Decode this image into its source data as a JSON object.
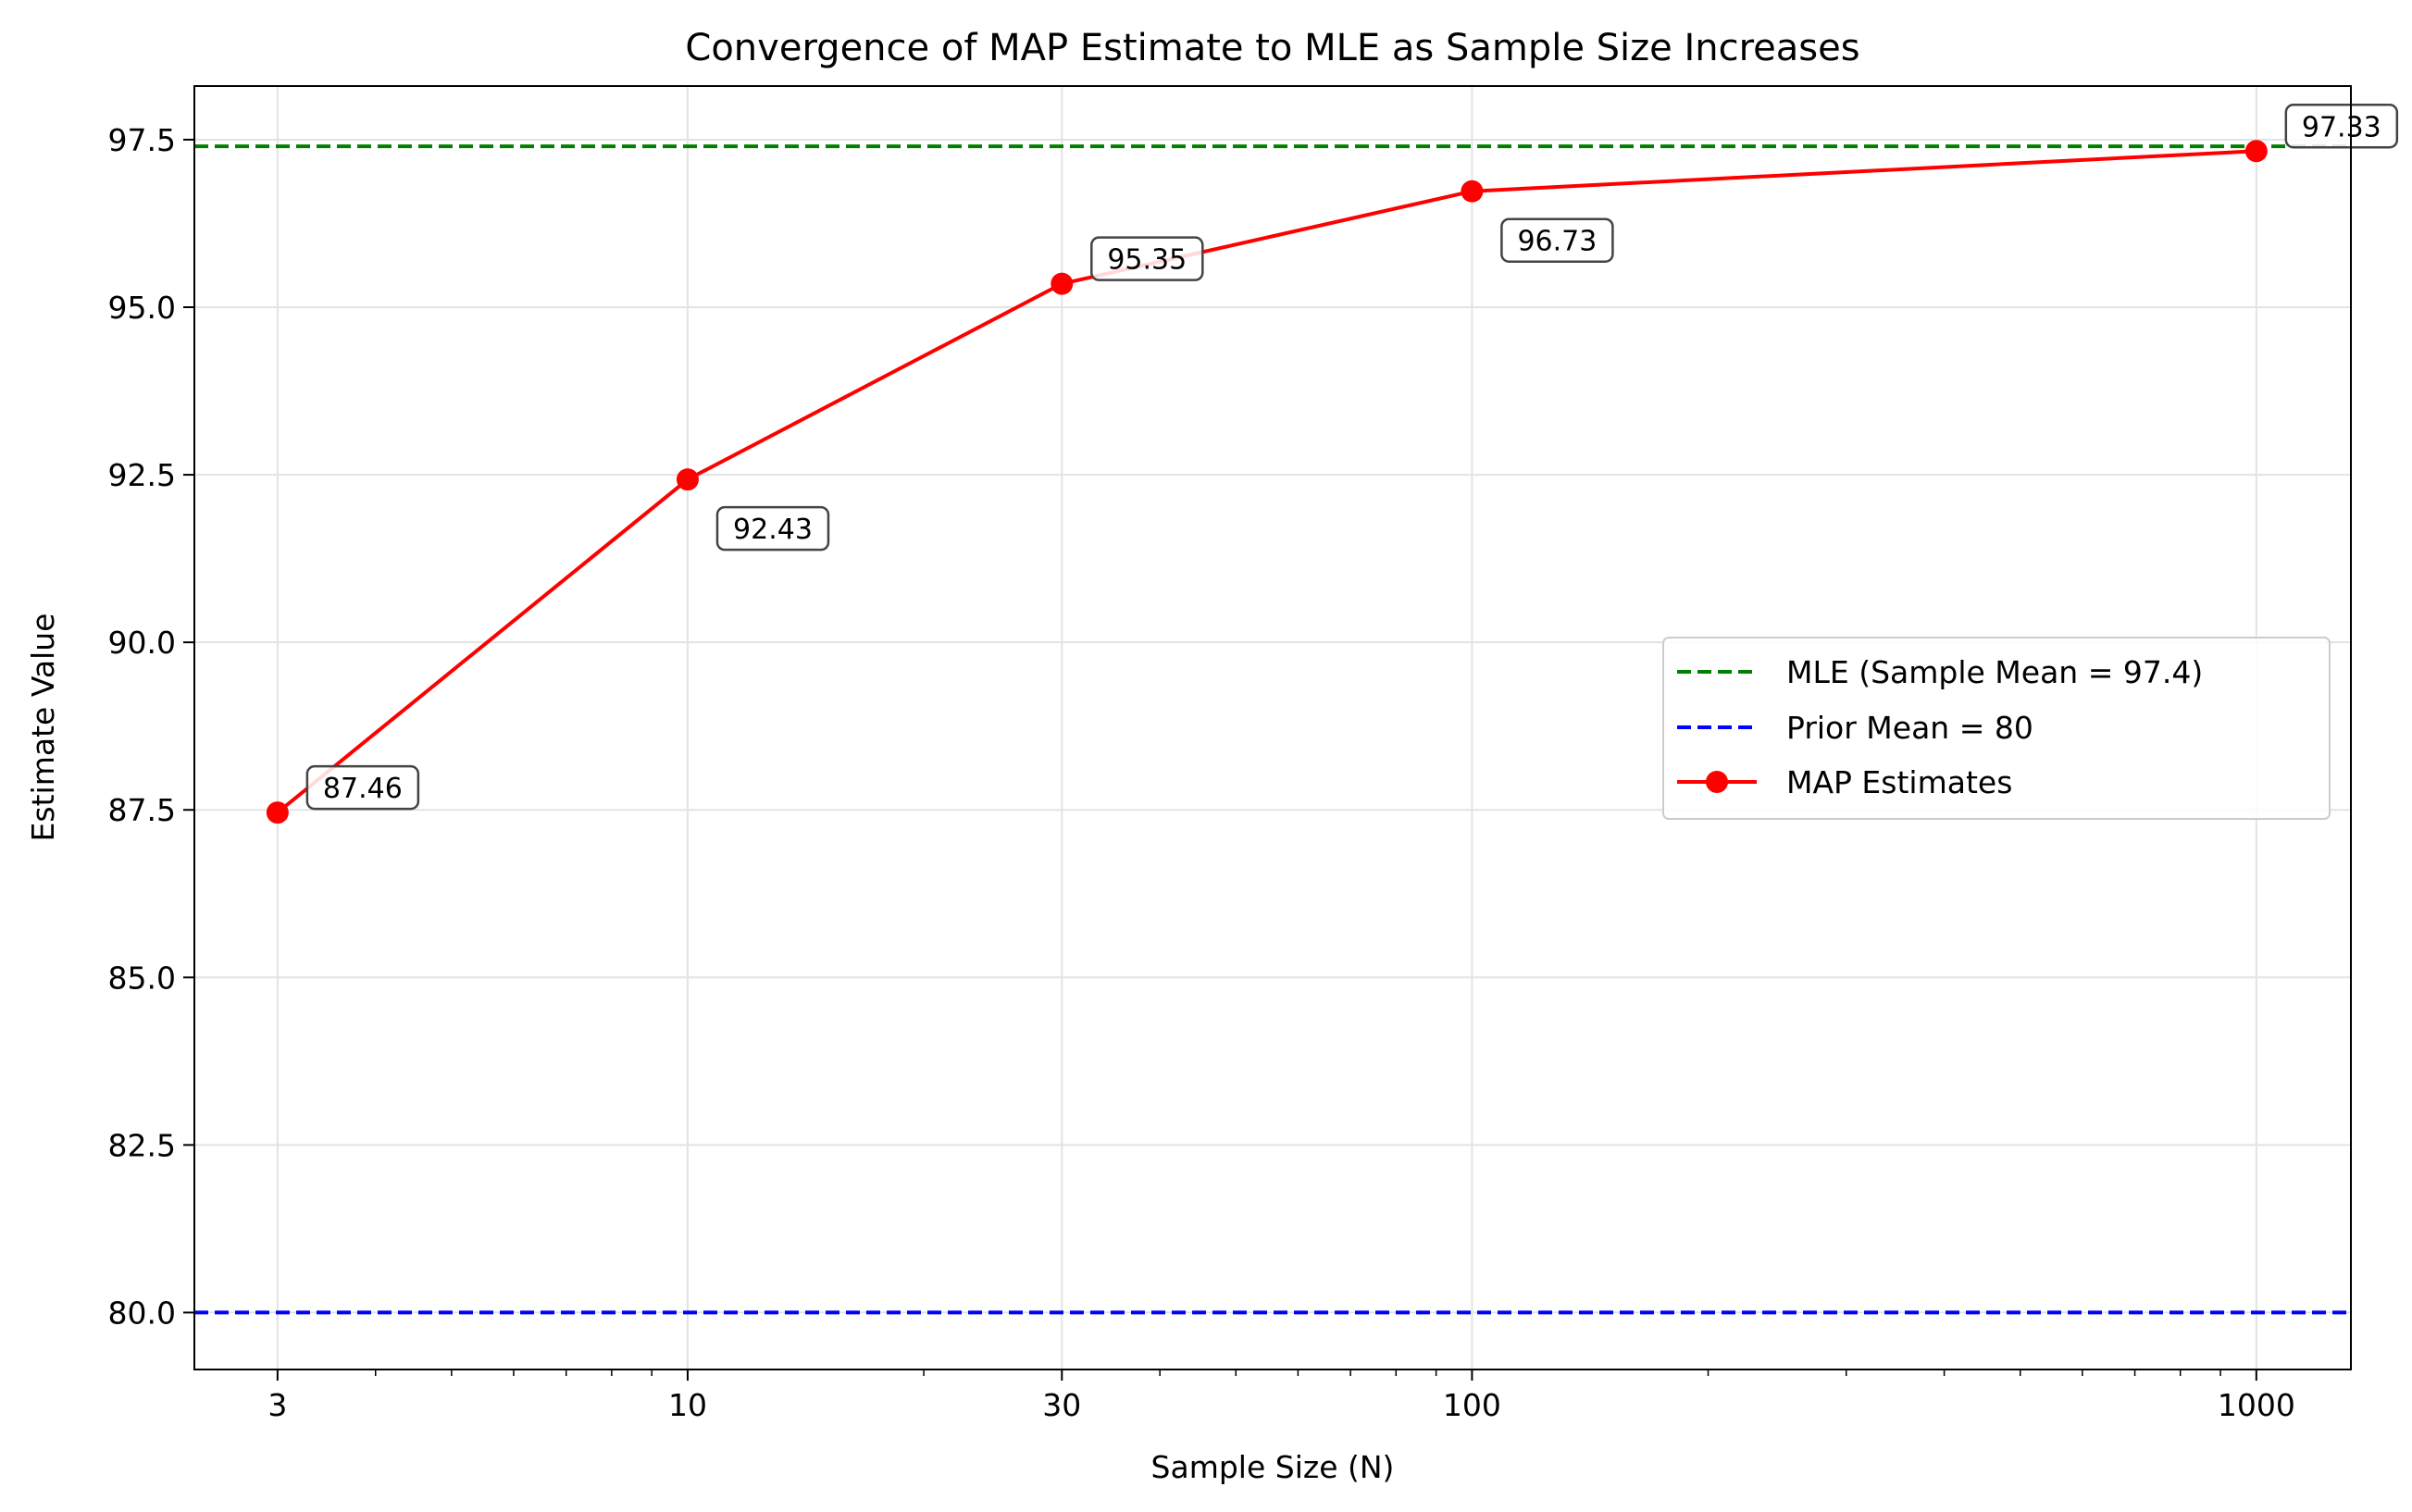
{
  "chart_data": {
    "type": "line",
    "title": "Convergence of MAP Estimate to MLE as Sample Size Increases",
    "xlabel": "Sample Size (N)",
    "ylabel": "Estimate Value",
    "x_scale": "log",
    "xlim": [
      2.35,
      1320
    ],
    "ylim": [
      79.15,
      98.3
    ],
    "x_ticks": [
      3,
      10,
      30,
      100,
      1000
    ],
    "x_tick_labels": [
      "3",
      "10",
      "30",
      "100",
      "1000"
    ],
    "y_ticks": [
      80.0,
      82.5,
      85.0,
      87.5,
      90.0,
      92.5,
      95.0,
      97.5
    ],
    "y_tick_labels": [
      "80.0",
      "82.5",
      "85.0",
      "87.5",
      "90.0",
      "92.5",
      "95.0",
      "97.5"
    ],
    "grid": true,
    "legend_position": "center-right",
    "series": [
      {
        "name": "MAP Estimates",
        "style": "solid-line-with-markers",
        "color": "#ff0000",
        "x": [
          3,
          10,
          30,
          100,
          1000
        ],
        "y": [
          87.46,
          92.43,
          95.35,
          96.73,
          97.33
        ],
        "point_labels": [
          "87.46",
          "92.43",
          "95.35",
          "96.73",
          "97.33"
        ]
      }
    ],
    "reference_lines": [
      {
        "name": "MLE (Sample Mean = 97.4)",
        "y": 97.4,
        "color": "#008000",
        "style": "dashed"
      },
      {
        "name": "Prior Mean = 80",
        "y": 80.0,
        "color": "#0000ff",
        "style": "dashed"
      }
    ],
    "legend": [
      "MLE (Sample Mean = 97.4)",
      "Prior Mean = 80",
      "MAP Estimates"
    ]
  }
}
